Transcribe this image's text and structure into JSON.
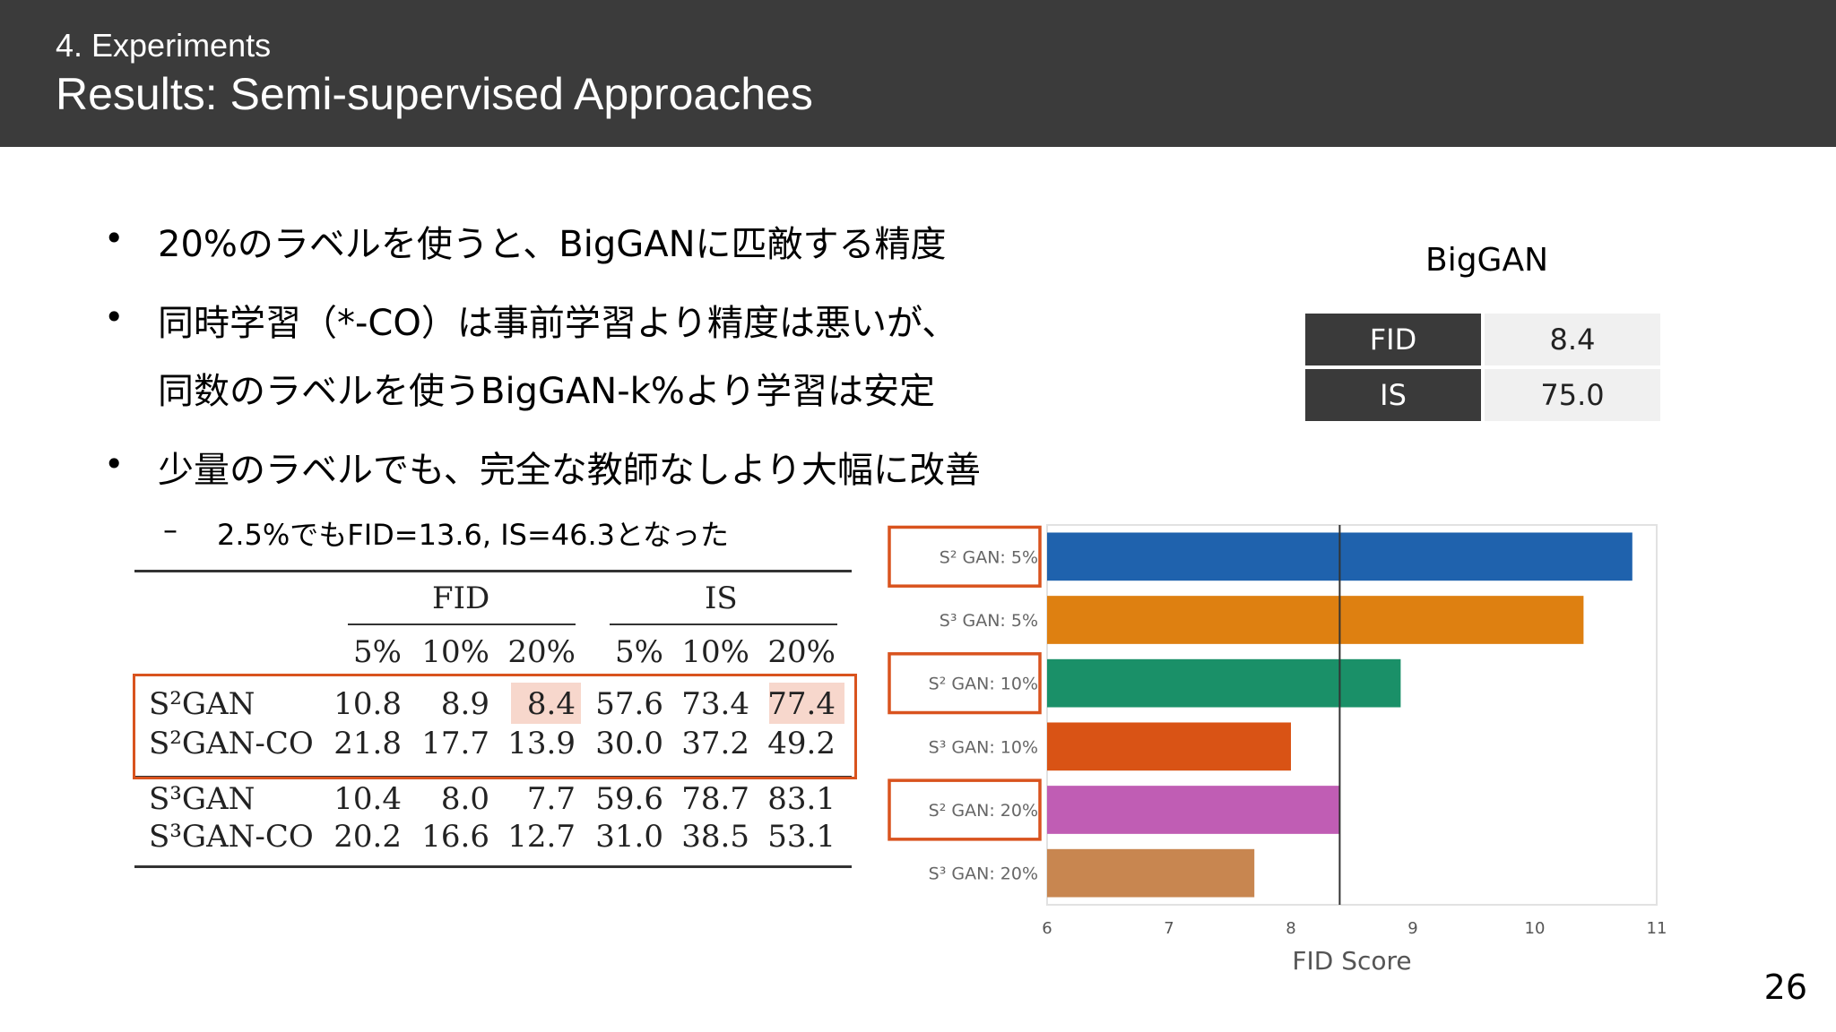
{
  "header": {
    "section": "4. Experiments",
    "title": "Results: Semi-supervised Approaches"
  },
  "bullets": [
    {
      "text": "20%のラベルを使うと、BigGANに匹敵する精度"
    },
    {
      "text": "同時学習（*-CO）は事前学習より精度は悪いが、"
    },
    {
      "text": "同数のラベルを使うBigGAN-k%より学習は安定"
    },
    {
      "text": "少量のラベルでも、完全な教師なしより大幅に改善"
    }
  ],
  "sub_bullet": {
    "dash": "–",
    "text": "2.5%でもFID=13.6, IS=46.3となった"
  },
  "biggan": {
    "title": "BigGAN",
    "rows": [
      {
        "key": "FID",
        "value": "8.4"
      },
      {
        "key": "IS",
        "value": "75.0"
      }
    ]
  },
  "results_table": {
    "group_headers": [
      "FID",
      "IS"
    ],
    "sub_headers": [
      "5%",
      "10%",
      "20%",
      "5%",
      "10%",
      "20%"
    ],
    "rows": [
      {
        "name": "S²GAN",
        "values": [
          "10.8",
          "8.9",
          "8.4",
          "57.6",
          "73.4",
          "77.4"
        ]
      },
      {
        "name": "S²GAN-CO",
        "values": [
          "21.8",
          "17.7",
          "13.9",
          "30.0",
          "37.2",
          "49.2"
        ]
      },
      {
        "name": "S³GAN",
        "values": [
          "10.4",
          "8.0",
          "7.7",
          "59.6",
          "78.7",
          "83.1"
        ]
      },
      {
        "name": "S³GAN-CO",
        "values": [
          "20.2",
          "16.6",
          "12.7",
          "31.0",
          "38.5",
          "53.1"
        ]
      }
    ],
    "highlight_color": "#f7d7cc",
    "box_color": "#d9531e"
  },
  "chart_data": {
    "type": "bar",
    "orientation": "horizontal",
    "categories": [
      "S² GAN: 5%",
      "S³ GAN: 5%",
      "S² GAN: 10%",
      "S³ GAN: 10%",
      "S² GAN: 20%",
      "S³ GAN: 20%"
    ],
    "values": [
      10.8,
      10.4,
      8.9,
      8.0,
      8.4,
      7.7
    ],
    "colors": [
      "#1f62ad",
      "#de8011",
      "#1a9068",
      "#d95315",
      "#c05db4",
      "#c88650"
    ],
    "highlighted_categories": [
      "S² GAN: 5%",
      "S² GAN: 10%",
      "S² GAN: 20%"
    ],
    "xlabel": "FID Score",
    "xlim": [
      6,
      11
    ],
    "xticks": [
      "6",
      "7",
      "8",
      "9",
      "10",
      "11"
    ],
    "reference_line": 8.4
  },
  "page_number": "26"
}
